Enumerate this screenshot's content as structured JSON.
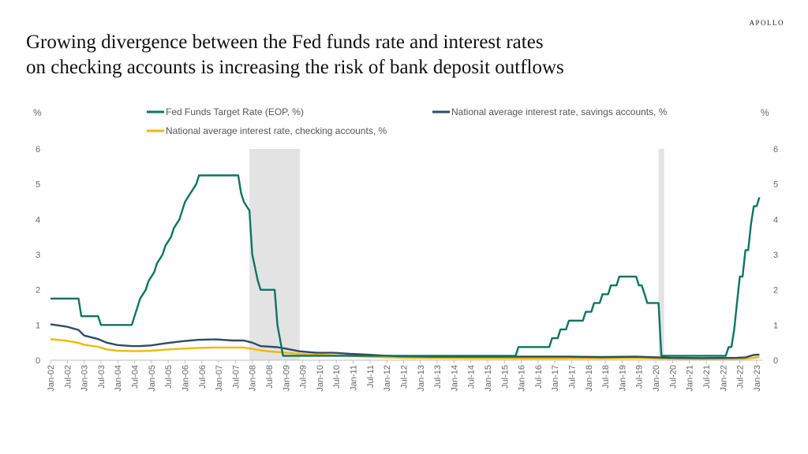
{
  "brand": "APOLLO",
  "title_line1": "Growing divergence between the Fed funds rate and interest rates",
  "title_line2": "on checking accounts is increasing the risk of  bank deposit outflows",
  "chart_data": {
    "type": "line",
    "y_unit_left": "%",
    "y_unit_right": "%",
    "ylim": [
      0,
      6
    ],
    "yticks": [
      0,
      1,
      2,
      3,
      4,
      5,
      6
    ],
    "x_range": [
      "2002-01",
      "2023-03"
    ],
    "xticks": [
      "Jan-02",
      "Jul-02",
      "Jan-03",
      "Jul-03",
      "Jan-04",
      "Jul-04",
      "Jan-05",
      "Jul-05",
      "Jan-06",
      "Jul-06",
      "Jan-07",
      "Jul-07",
      "Jan-08",
      "Jul-08",
      "Jan-09",
      "Jul-09",
      "Jan-10",
      "Jul-10",
      "Jan-11",
      "Jul-11",
      "Jan-12",
      "Jul-12",
      "Jan-13",
      "Jul-13",
      "Jan-14",
      "Jul-14",
      "Jan-15",
      "Jul-15",
      "Jan-16",
      "Jul-16",
      "Jan-17",
      "Jul-17",
      "Jan-18",
      "Jul-18",
      "Jan-19",
      "Jul-19",
      "Jan-20",
      "Jul-20",
      "Jan-21",
      "Jul-21",
      "Jan-22",
      "Jul-22",
      "Jan-23"
    ],
    "recessions": [
      [
        "2007-12",
        "2009-06"
      ],
      [
        "2020-02",
        "2020-04"
      ]
    ],
    "grid": false,
    "legend_position": "top",
    "series": [
      {
        "name": "Fed Funds Target Rate (EOP, %)",
        "color": "#0e7561",
        "points": [
          [
            "2002-01",
            1.75
          ],
          [
            "2002-11",
            1.75
          ],
          [
            "2002-12",
            1.25
          ],
          [
            "2003-06",
            1.25
          ],
          [
            "2003-07",
            1.0
          ],
          [
            "2004-06",
            1.0
          ],
          [
            "2004-07",
            1.25
          ],
          [
            "2004-08",
            1.5
          ],
          [
            "2004-09",
            1.75
          ],
          [
            "2004-11",
            2.0
          ],
          [
            "2004-12",
            2.25
          ],
          [
            "2005-02",
            2.5
          ],
          [
            "2005-03",
            2.75
          ],
          [
            "2005-05",
            3.0
          ],
          [
            "2005-06",
            3.25
          ],
          [
            "2005-08",
            3.5
          ],
          [
            "2005-09",
            3.75
          ],
          [
            "2005-11",
            4.0
          ],
          [
            "2005-12",
            4.25
          ],
          [
            "2006-01",
            4.5
          ],
          [
            "2006-03",
            4.75
          ],
          [
            "2006-05",
            5.0
          ],
          [
            "2006-06",
            5.25
          ],
          [
            "2007-08",
            5.25
          ],
          [
            "2007-09",
            4.75
          ],
          [
            "2007-10",
            4.5
          ],
          [
            "2007-12",
            4.25
          ],
          [
            "2008-01",
            3.0
          ],
          [
            "2008-03",
            2.25
          ],
          [
            "2008-04",
            2.0
          ],
          [
            "2008-09",
            2.0
          ],
          [
            "2008-10",
            1.0
          ],
          [
            "2008-12",
            0.125
          ],
          [
            "2015-11",
            0.125
          ],
          [
            "2015-12",
            0.375
          ],
          [
            "2016-11",
            0.375
          ],
          [
            "2016-12",
            0.625
          ],
          [
            "2017-02",
            0.625
          ],
          [
            "2017-03",
            0.875
          ],
          [
            "2017-05",
            0.875
          ],
          [
            "2017-06",
            1.125
          ],
          [
            "2017-11",
            1.125
          ],
          [
            "2017-12",
            1.375
          ],
          [
            "2018-02",
            1.375
          ],
          [
            "2018-03",
            1.625
          ],
          [
            "2018-05",
            1.625
          ],
          [
            "2018-06",
            1.875
          ],
          [
            "2018-08",
            1.875
          ],
          [
            "2018-09",
            2.125
          ],
          [
            "2018-11",
            2.125
          ],
          [
            "2018-12",
            2.375
          ],
          [
            "2019-06",
            2.375
          ],
          [
            "2019-07",
            2.125
          ],
          [
            "2019-08",
            2.125
          ],
          [
            "2019-09",
            1.875
          ],
          [
            "2019-10",
            1.625
          ],
          [
            "2020-02",
            1.625
          ],
          [
            "2020-03",
            0.125
          ],
          [
            "2022-02",
            0.125
          ],
          [
            "2022-03",
            0.375
          ],
          [
            "2022-04",
            0.375
          ],
          [
            "2022-05",
            0.875
          ],
          [
            "2022-06",
            1.625
          ],
          [
            "2022-07",
            2.375
          ],
          [
            "2022-08",
            2.375
          ],
          [
            "2022-09",
            3.125
          ],
          [
            "2022-10",
            3.125
          ],
          [
            "2022-11",
            3.875
          ],
          [
            "2022-12",
            4.375
          ],
          [
            "2023-01",
            4.375
          ],
          [
            "2023-02",
            4.625
          ]
        ]
      },
      {
        "name": "National average interest rate, savings accounts, %",
        "color": "#2f4a66",
        "points": [
          [
            "2002-01",
            1.02
          ],
          [
            "2002-07",
            0.95
          ],
          [
            "2002-11",
            0.86
          ],
          [
            "2003-01",
            0.7
          ],
          [
            "2003-06",
            0.6
          ],
          [
            "2003-09",
            0.5
          ],
          [
            "2004-01",
            0.43
          ],
          [
            "2004-06",
            0.4
          ],
          [
            "2004-09",
            0.4
          ],
          [
            "2005-01",
            0.42
          ],
          [
            "2005-06",
            0.48
          ],
          [
            "2005-12",
            0.54
          ],
          [
            "2006-06",
            0.58
          ],
          [
            "2006-12",
            0.59
          ],
          [
            "2007-06",
            0.56
          ],
          [
            "2007-10",
            0.56
          ],
          [
            "2008-01",
            0.5
          ],
          [
            "2008-04",
            0.4
          ],
          [
            "2008-10",
            0.37
          ],
          [
            "2009-01",
            0.33
          ],
          [
            "2009-06",
            0.25
          ],
          [
            "2009-12",
            0.21
          ],
          [
            "2010-06",
            0.21
          ],
          [
            "2010-12",
            0.18
          ],
          [
            "2011-06",
            0.16
          ],
          [
            "2011-12",
            0.13
          ],
          [
            "2012-06",
            0.11
          ],
          [
            "2013-06",
            0.1
          ],
          [
            "2015-12",
            0.1
          ],
          [
            "2017-06",
            0.1
          ],
          [
            "2018-06",
            0.09
          ],
          [
            "2019-06",
            0.1
          ],
          [
            "2020-06",
            0.07
          ],
          [
            "2021-06",
            0.06
          ],
          [
            "2022-06",
            0.07
          ],
          [
            "2022-09",
            0.08
          ],
          [
            "2022-12",
            0.15
          ],
          [
            "2023-02",
            0.16
          ]
        ]
      },
      {
        "name": "National average interest rate, checking accounts, %",
        "color": "#f2b705",
        "points": [
          [
            "2002-01",
            0.6
          ],
          [
            "2002-07",
            0.55
          ],
          [
            "2002-11",
            0.49
          ],
          [
            "2003-01",
            0.44
          ],
          [
            "2003-06",
            0.38
          ],
          [
            "2003-09",
            0.31
          ],
          [
            "2004-01",
            0.27
          ],
          [
            "2004-06",
            0.26
          ],
          [
            "2004-09",
            0.26
          ],
          [
            "2005-01",
            0.27
          ],
          [
            "2005-06",
            0.3
          ],
          [
            "2005-12",
            0.33
          ],
          [
            "2006-06",
            0.35
          ],
          [
            "2006-12",
            0.36
          ],
          [
            "2007-06",
            0.36
          ],
          [
            "2007-10",
            0.36
          ],
          [
            "2008-01",
            0.32
          ],
          [
            "2008-06",
            0.26
          ],
          [
            "2008-12",
            0.22
          ],
          [
            "2009-06",
            0.18
          ],
          [
            "2009-12",
            0.16
          ],
          [
            "2010-06",
            0.14
          ],
          [
            "2010-12",
            0.12
          ],
          [
            "2011-06",
            0.1
          ],
          [
            "2012-06",
            0.07
          ],
          [
            "2013-06",
            0.06
          ],
          [
            "2015-12",
            0.05
          ],
          [
            "2017-06",
            0.05
          ],
          [
            "2018-06",
            0.05
          ],
          [
            "2019-06",
            0.06
          ],
          [
            "2020-06",
            0.04
          ],
          [
            "2021-06",
            0.03
          ],
          [
            "2022-06",
            0.03
          ],
          [
            "2022-09",
            0.04
          ],
          [
            "2022-12",
            0.07
          ],
          [
            "2023-02",
            0.09
          ]
        ]
      }
    ]
  }
}
